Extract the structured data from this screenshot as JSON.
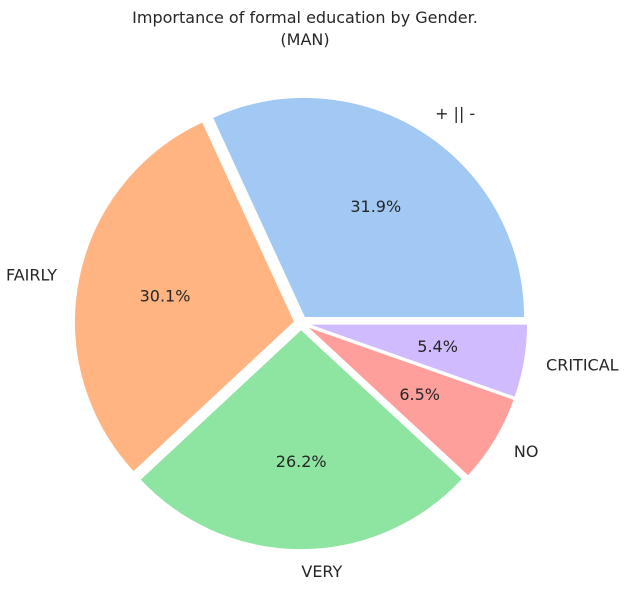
{
  "chart_data": {
    "type": "pie",
    "title": "Importance of formal education by Gender.",
    "subtitle": "(MAN)",
    "categories": [
      "+ || -",
      "FAIRLY",
      "VERY",
      "NO",
      "CRITICAL"
    ],
    "values": [
      31.9,
      30.1,
      26.2,
      6.5,
      5.4
    ],
    "value_labels": [
      "31.9%",
      "30.1%",
      "26.2%",
      "6.5%",
      "5.4%"
    ],
    "colors": [
      "#a1c9f4",
      "#ffb482",
      "#8de5a1",
      "#ff9f9b",
      "#d0bbff"
    ],
    "start_angle_deg": 0,
    "direction": "counterclockwise",
    "exploded": true,
    "legend": "none"
  }
}
